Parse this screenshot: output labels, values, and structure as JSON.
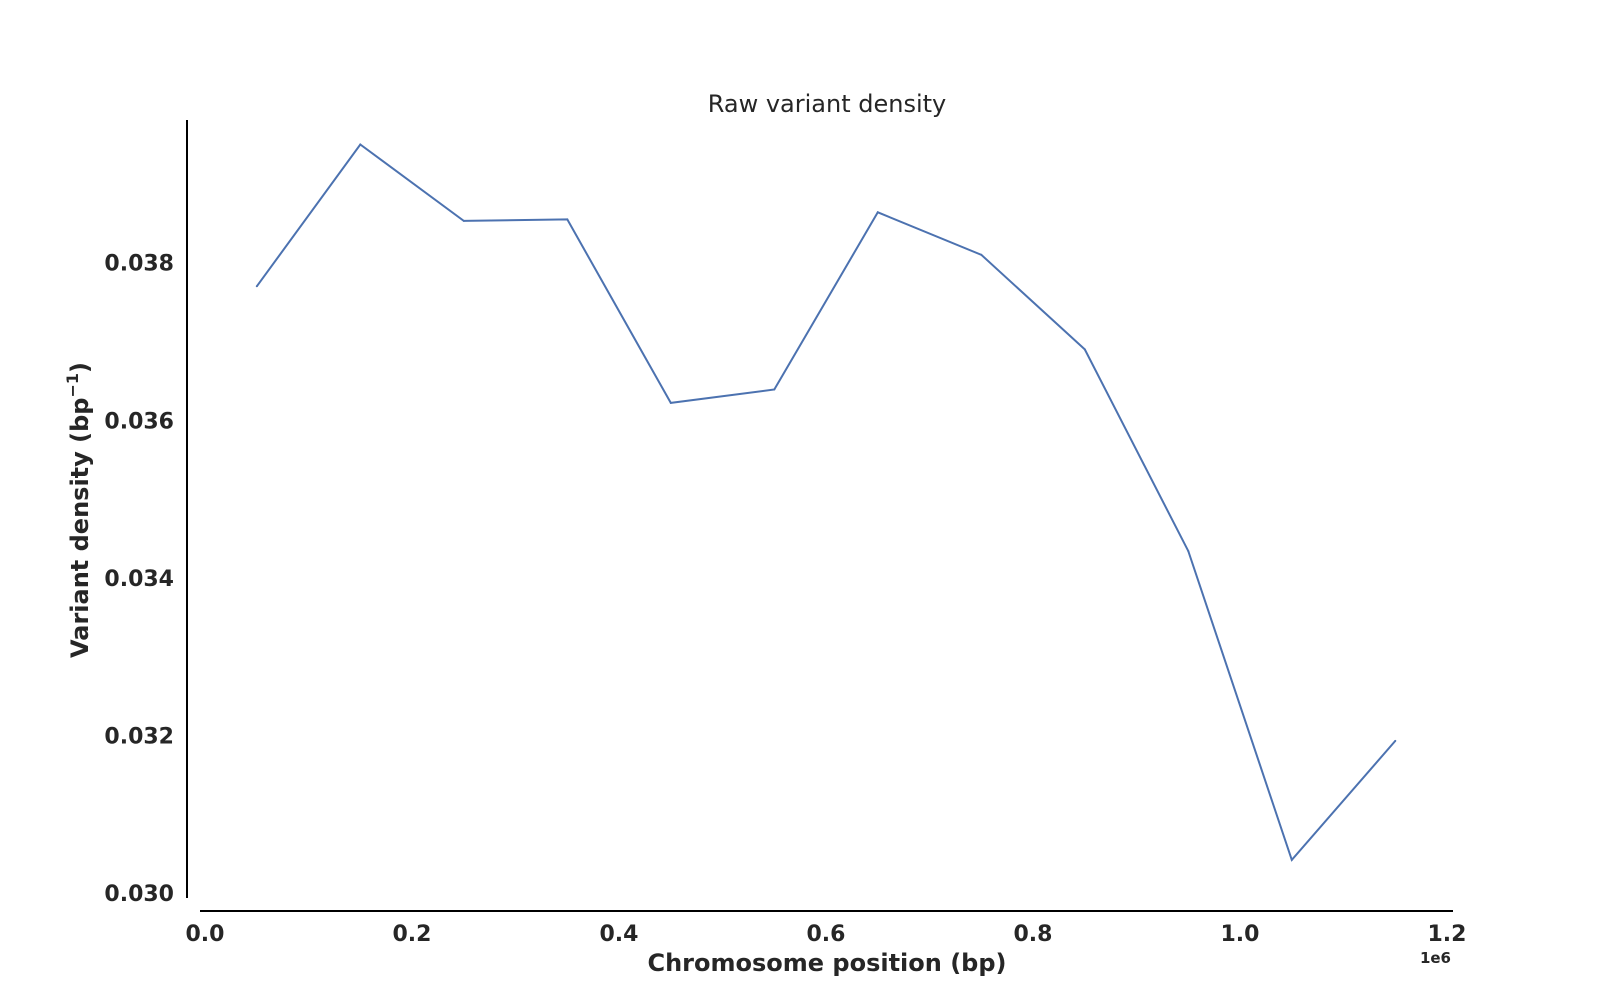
{
  "chart_data": {
    "type": "line",
    "title": "Raw variant density",
    "xlabel": "Chromosome position (bp)",
    "ylabel": "Variant density (bp",
    "ylabel_exponent": "−1",
    "ylabel_close": ")",
    "x_offset_label": "1e6",
    "x_scale": 1000000,
    "xlim": [
      0,
      1.2
    ],
    "ylim": [
      0.03,
      0.0399
    ],
    "x_ticks": [
      0.0,
      0.2,
      0.4,
      0.6,
      0.8,
      1.0,
      1.2
    ],
    "x_tick_labels": [
      "0.0",
      "0.2",
      "0.4",
      "0.6",
      "0.8",
      "1.0",
      "1.2"
    ],
    "y_ticks": [
      0.03,
      0.032,
      0.034,
      0.036,
      0.038
    ],
    "y_tick_labels": [
      "0.030",
      "0.032",
      "0.034",
      "0.036",
      "0.038"
    ],
    "grid": false,
    "series": [
      {
        "color": "#4c72b0",
        "x": [
          50000,
          150000,
          250000,
          350000,
          450000,
          550000,
          650000,
          750000,
          850000,
          950000,
          1050000,
          1150000
        ],
        "values": [
          0.0377,
          0.0395,
          0.03853,
          0.03855,
          0.03622,
          0.03639,
          0.03864,
          0.0381,
          0.0369,
          0.03434,
          0.03042,
          0.03193
        ]
      }
    ]
  }
}
